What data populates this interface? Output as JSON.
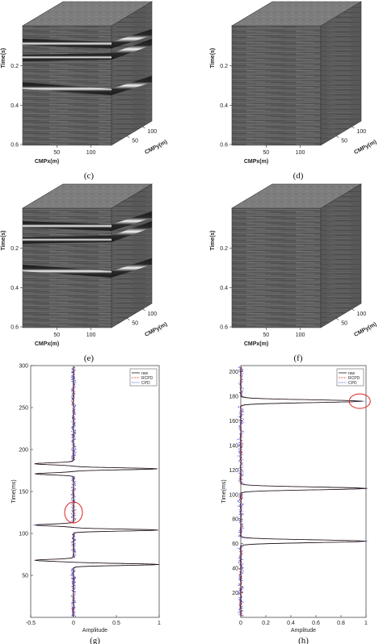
{
  "panels": [
    {
      "label": "(c)",
      "axes": {
        "time": "Time(s)",
        "x": "CMPx(m)",
        "y": "CMPy(m)"
      },
      "time_ticks": [
        "0.2",
        "0.4",
        "0.6"
      ],
      "x_ticks": [
        "50",
        "100"
      ],
      "y_ticks": [
        "50",
        "100"
      ],
      "has_events": true
    },
    {
      "label": "(d)",
      "axes": {
        "time": "Time(s)",
        "x": "CMPx(m)",
        "y": "CMPy(m)"
      },
      "time_ticks": [
        "0.2",
        "0.4",
        "0.6"
      ],
      "x_ticks": [
        "50",
        "100"
      ],
      "y_ticks": [
        "50",
        "100"
      ],
      "has_events": false
    },
    {
      "label": "(e)",
      "axes": {
        "time": "Time(s)",
        "x": "CMPx(m)",
        "y": "CMPy(m)"
      },
      "time_ticks": [
        "0.2",
        "0.4",
        "0.6"
      ],
      "x_ticks": [
        "50",
        "100"
      ],
      "y_ticks": [
        "50",
        "100"
      ],
      "has_events": true
    },
    {
      "label": "(f)",
      "axes": {
        "time": "Time(s)",
        "x": "CMPx(m)",
        "y": "CMPy(m)"
      },
      "time_ticks": [
        "0.2",
        "0.4",
        "0.6"
      ],
      "x_ticks": [
        "50",
        "100"
      ],
      "y_ticks": [
        "50",
        "100"
      ],
      "has_events": false
    }
  ],
  "colors": {
    "raw": "#1a1a1a",
    "rcpd": "#e0282a",
    "cpd": "#2a2ad8",
    "circle": "#e02020",
    "cube_front": "#5e5e5e"
  },
  "chart_data": [
    {
      "type": "line",
      "label": "(g)",
      "xlabel": "Amplitude",
      "ylabel": "Time(ms)",
      "xlim": [
        -0.5,
        1
      ],
      "ylim": [
        0,
        300
      ],
      "x_ticks": [
        -0.5,
        0,
        0.5,
        1
      ],
      "x_tick_labels": [
        "-0.5",
        "0",
        "0.5",
        "1"
      ],
      "y_ticks": [
        50,
        100,
        150,
        200,
        250,
        300
      ],
      "y_tick_labels": [
        "50",
        "100",
        "150",
        "200",
        "250",
        "300"
      ],
      "legend": [
        "raw",
        "RCPD",
        "CPD"
      ],
      "legend_position": "top-right",
      "peaks": [
        {
          "time": 63,
          "amp": 1.0
        },
        {
          "time": 68,
          "amp": -0.45
        },
        {
          "time": 104,
          "amp": 0.99
        },
        {
          "time": 110,
          "amp": -0.45
        },
        {
          "time": 171,
          "amp": -0.45
        },
        {
          "time": 177,
          "amp": 0.98
        },
        {
          "time": 183,
          "amp": -0.45
        }
      ],
      "circle": {
        "time": 125,
        "amp": 0.0
      }
    },
    {
      "type": "line",
      "label": "(h)",
      "xlabel": "Amplitude",
      "ylabel": "Time(ms)",
      "xlim": [
        0,
        1
      ],
      "ylim": [
        0,
        205
      ],
      "x_ticks": [
        0,
        0.2,
        0.4,
        0.6,
        0.8,
        1
      ],
      "x_tick_labels": [
        "0",
        "0.2",
        "0.4",
        "0.6",
        "0.8",
        "1"
      ],
      "y_ticks": [
        20,
        40,
        60,
        80,
        100,
        120,
        140,
        160,
        180,
        200
      ],
      "y_tick_labels": [
        "20",
        "40",
        "60",
        "80",
        "100",
        "120",
        "140",
        "160",
        "180",
        "200"
      ],
      "legend": [
        "raw",
        "RCPD",
        "CPD"
      ],
      "legend_position": "top-right",
      "peaks": [
        {
          "time": 62,
          "amp": 1.0
        },
        {
          "time": 105,
          "amp": 1.0
        },
        {
          "time": 176,
          "amp": 0.97
        }
      ],
      "circle": {
        "time": 176,
        "amp": 0.95
      }
    }
  ]
}
